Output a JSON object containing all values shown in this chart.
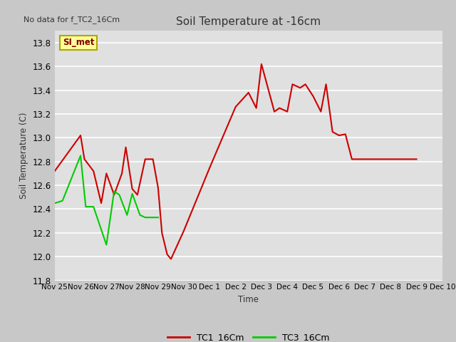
{
  "title": "Soil Temperature at -16cm",
  "no_data_text": "No data for f_TC2_16Cm",
  "xlabel": "Time",
  "ylabel": "Soil Temperature (C)",
  "fig_bg_color": "#c8c8c8",
  "plot_bg_color": "#e0e0e0",
  "grid_color": "#ffffff",
  "annotation_label": "SI_met",
  "annotation_color": "#800000",
  "annotation_bg": "#ffff99",
  "annotation_border": "#aaa800",
  "tc1_color": "#cc0000",
  "tc3_color": "#00cc00",
  "line_width": 1.5,
  "legend_tc1": "TC1_16Cm",
  "legend_tc3": "TC3_16Cm",
  "xlim": [
    0,
    15
  ],
  "ylim": [
    11.8,
    13.9
  ],
  "xtick_positions": [
    0,
    1,
    2,
    3,
    4,
    5,
    6,
    7,
    8,
    9,
    10,
    11,
    12,
    13,
    14,
    15
  ],
  "xtick_labels": [
    "Nov 25",
    "Nov 26",
    "Nov 27",
    "Nov 28",
    "Nov 29",
    "Nov 30",
    "Dec 1",
    "Dec 2",
    "Dec 3",
    "Dec 4",
    "Dec 5",
    "Dec 6",
    "Dec 7",
    "Dec 8",
    "Dec 9",
    "Dec 10"
  ],
  "ytick_positions": [
    11.8,
    12.0,
    12.2,
    12.4,
    12.6,
    12.8,
    13.0,
    13.2,
    13.4,
    13.6,
    13.8
  ],
  "tc1_x": [
    0.0,
    1.0,
    1.15,
    1.5,
    1.8,
    2.0,
    2.3,
    2.6,
    2.75,
    3.0,
    3.2,
    3.5,
    3.8,
    4.0,
    4.15,
    4.35,
    4.5,
    5.0,
    6.0,
    7.0,
    7.5,
    7.8,
    8.0,
    8.5,
    8.7,
    9.0,
    9.2,
    9.5,
    9.7,
    10.0,
    10.3,
    10.5,
    10.75,
    11.0,
    11.25,
    11.5,
    12.0,
    14.0
  ],
  "tc1_y": [
    12.72,
    13.02,
    12.82,
    12.72,
    12.45,
    12.7,
    12.52,
    12.7,
    12.92,
    12.57,
    12.52,
    12.82,
    12.82,
    12.58,
    12.2,
    12.02,
    11.98,
    12.22,
    12.75,
    13.26,
    13.38,
    13.25,
    13.62,
    13.22,
    13.25,
    13.22,
    13.45,
    13.42,
    13.45,
    13.35,
    13.22,
    13.45,
    13.05,
    13.02,
    13.03,
    12.82,
    12.82,
    12.82
  ],
  "tc3_x": [
    0.0,
    0.3,
    1.0,
    1.2,
    1.5,
    2.0,
    2.3,
    2.5,
    2.8,
    3.0,
    3.3,
    3.5,
    3.8,
    4.0
  ],
  "tc3_y": [
    12.45,
    12.47,
    12.85,
    12.42,
    12.42,
    12.1,
    12.55,
    12.52,
    12.35,
    12.53,
    12.35,
    12.33,
    12.33,
    12.33
  ]
}
